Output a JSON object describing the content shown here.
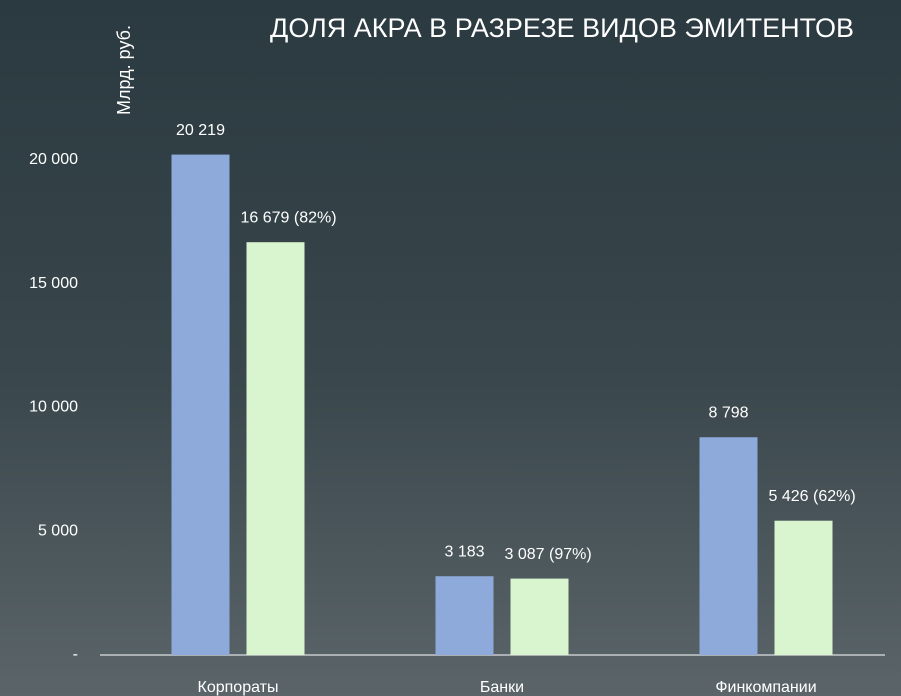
{
  "chart_data": {
    "type": "bar",
    "title": "ДОЛЯ АКРА В РАЗРЕЗЕ ВИДОВ ЭМИТЕНТОВ",
    "y_axis_label": "Млрд. руб.",
    "categories": [
      "Корпораты",
      "Банки",
      "Финкомпании"
    ],
    "series": [
      {
        "color": "#8eaadb",
        "values": [
          20219,
          3183,
          8798
        ],
        "value_labels": [
          "20 219",
          "3 183",
          "8 798"
        ]
      },
      {
        "color": "#d9f5d0",
        "values": [
          16679,
          3087,
          5426
        ],
        "value_labels": [
          "16 679 (82%)",
          "3 087 (97%)",
          "5 426 (62%)"
        ]
      }
    ],
    "ylim": [
      0,
      22000
    ],
    "yticks": [
      {
        "value": 0,
        "label": "-"
      },
      {
        "value": 5000,
        "label": "5 000"
      },
      {
        "value": 10000,
        "label": "10 000"
      },
      {
        "value": 15000,
        "label": "15 000"
      },
      {
        "value": 20000,
        "label": "20 000"
      }
    ]
  }
}
